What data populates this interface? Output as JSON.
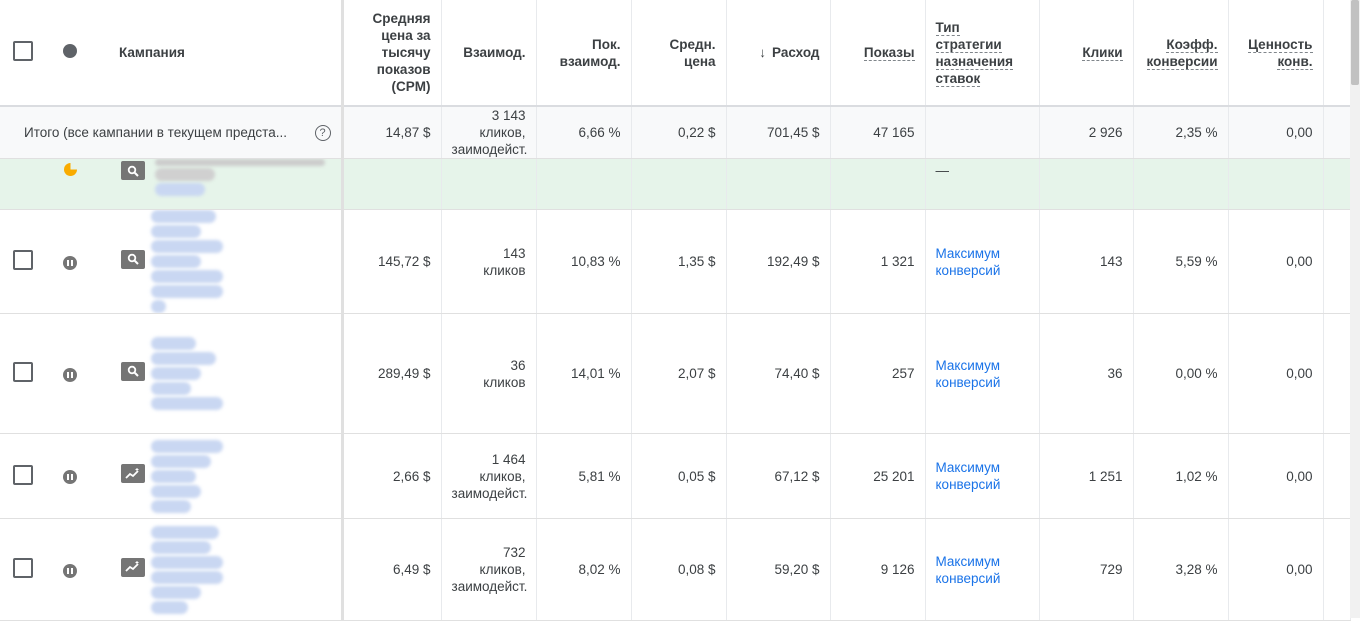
{
  "header": {
    "campaign": "Кампания",
    "columns": [
      {
        "key": "cpm",
        "label": "Средняя цена за тысячу показов (CPM)"
      },
      {
        "key": "interactions",
        "label": "Взаимод."
      },
      {
        "key": "interaction_rate",
        "label": "Пок. взаимод."
      },
      {
        "key": "avg_cost",
        "label": "Средн. цена"
      },
      {
        "key": "cost",
        "label": "Расход",
        "sorted": "desc"
      },
      {
        "key": "impressions",
        "label": "Показы"
      },
      {
        "key": "bid_strategy",
        "label": "Тип стратегии назначения ставок"
      },
      {
        "key": "clicks",
        "label": "Клики"
      },
      {
        "key": "conv_rate",
        "label": "Коэфф. конверсии"
      },
      {
        "key": "conv_value",
        "label": "Ценность конв."
      }
    ]
  },
  "total": {
    "label": "Итого (все кампании в текущем предста...",
    "cpm": "14,87 $",
    "interactions": "3 143",
    "interactions_unit": "кликов, заимодейст.",
    "interaction_rate": "6,66 %",
    "avg_cost": "0,22 $",
    "cost": "701,45 $",
    "impressions": "47 165",
    "clicks": "2 926",
    "conv_rate": "2,35 %",
    "conv_value": "0,00"
  },
  "green_row": {
    "status_icon": "pie-partial-icon",
    "type_icon": "search-icon",
    "bid_strategy": "—",
    "status_color": "#f9ab00"
  },
  "rows": [
    {
      "status": "paused",
      "type_icon": "search-icon",
      "cpm": "145,72 $",
      "interactions": "143",
      "interactions_unit": "кликов",
      "interaction_rate": "10,83 %",
      "avg_cost": "1,35 $",
      "cost": "192,49 $",
      "impressions": "1 321",
      "bid_strategy": "Максимум конверсий",
      "clicks": "143",
      "conv_rate": "5,59 %",
      "conv_value": "0,00"
    },
    {
      "status": "paused",
      "type_icon": "search-icon",
      "cpm": "289,49 $",
      "interactions": "36",
      "interactions_unit": "кликов",
      "interaction_rate": "14,01 %",
      "avg_cost": "2,07 $",
      "cost": "74,40 $",
      "impressions": "257",
      "bid_strategy": "Максимум конверсий",
      "clicks": "36",
      "conv_rate": "0,00 %",
      "conv_value": "0,00"
    },
    {
      "status": "paused",
      "type_icon": "display-trend-icon",
      "cpm": "2,66 $",
      "interactions": "1 464",
      "interactions_unit": "кликов, заимодейст.",
      "interaction_rate": "5,81 %",
      "avg_cost": "0,05 $",
      "cost": "67,12 $",
      "impressions": "25 201",
      "bid_strategy": "Максимум конверсий",
      "clicks": "1 251",
      "conv_rate": "1,02 %",
      "conv_value": "0,00"
    },
    {
      "status": "paused",
      "type_icon": "display-trend-icon",
      "cpm": "6,49 $",
      "interactions": "732",
      "interactions_unit": "кликов, заимодейст.",
      "interaction_rate": "8,02 %",
      "avg_cost": "0,08 $",
      "cost": "59,20 $",
      "impressions": "9 126",
      "bid_strategy": "Максимум конверсий",
      "clicks": "729",
      "conv_rate": "3,28 %",
      "conv_value": "0,00"
    }
  ],
  "colors": {
    "link": "#1a73e8",
    "green_row": "#e6f4ea",
    "total_row": "#f8f9fa"
  }
}
